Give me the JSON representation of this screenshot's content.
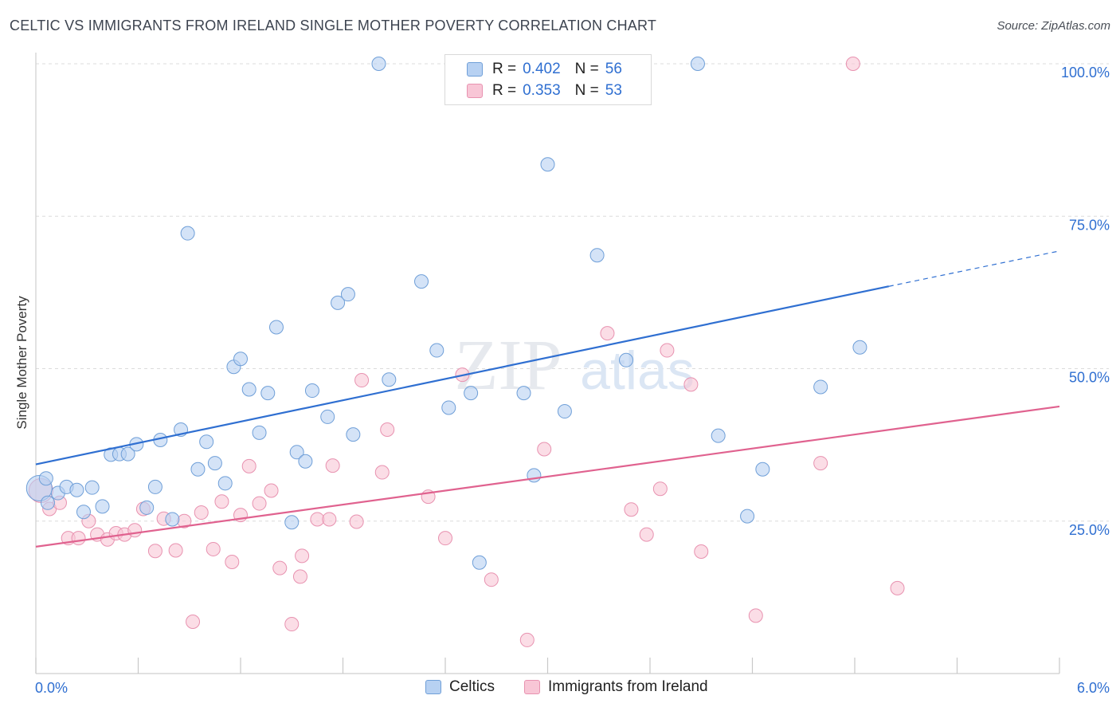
{
  "title": "CELTIC VS IMMIGRANTS FROM IRELAND SINGLE MOTHER POVERTY CORRELATION CHART",
  "source": "Source: ZipAtlas.com",
  "watermark": {
    "zip": "ZIP",
    "atlas": "atlas"
  },
  "legend": {
    "rows": [
      {
        "r_label": "R =",
        "r_value": "0.402",
        "n_label": "N =",
        "n_value": "56"
      },
      {
        "r_label": "R =",
        "r_value": "0.353",
        "n_label": "N =",
        "n_value": "53"
      }
    ]
  },
  "colors": {
    "celtics_fill": "#b7d1f2",
    "celtics_stroke": "#6f9fd8",
    "celtics_line": "#2f6fd1",
    "ireland_fill": "#f8c6d6",
    "ireland_stroke": "#e892b0",
    "ireland_line": "#e0628f",
    "axis_text": "#2f6fd1",
    "grid": "#dcdcdc"
  },
  "chart_data": {
    "type": "scatter",
    "title": "CELTIC VS IMMIGRANTS FROM IRELAND SINGLE MOTHER POVERTY CORRELATION CHART",
    "xlabel": "",
    "ylabel": "Single Mother Poverty",
    "xlim": [
      0,
      6
    ],
    "ylim": [
      0,
      100
    ],
    "x_tick_labels": [
      "0.0%",
      "6.0%"
    ],
    "y_ticks": [
      25,
      50,
      75,
      100
    ],
    "y_tick_labels": [
      "25.0%",
      "50.0%",
      "75.0%",
      "100.0%"
    ],
    "grid": true,
    "legend_position": "top-center",
    "series": [
      {
        "name": "Celtics",
        "r": 0.402,
        "n": 56,
        "trend": {
          "x0": 0,
          "y0": 34.3,
          "x1": 5.0,
          "y1": 63.5,
          "dashed_to_x": 6.0,
          "dashed_to_y": 69.3
        },
        "points": [
          [
            0.02,
            30.4
          ],
          [
            0.07,
            28.0
          ],
          [
            0.13,
            29.6
          ],
          [
            0.18,
            30.6
          ],
          [
            0.24,
            30.1
          ],
          [
            0.28,
            26.5
          ],
          [
            0.33,
            30.5
          ],
          [
            0.39,
            27.4
          ],
          [
            0.44,
            35.9
          ],
          [
            0.49,
            36.0
          ],
          [
            0.54,
            36.0
          ],
          [
            0.59,
            37.6
          ],
          [
            0.65,
            27.2
          ],
          [
            0.7,
            30.6
          ],
          [
            0.73,
            38.3
          ],
          [
            0.8,
            25.3
          ],
          [
            0.85,
            40.0
          ],
          [
            0.89,
            72.2
          ],
          [
            0.95,
            33.5
          ],
          [
            1.0,
            38.0
          ],
          [
            1.05,
            34.5
          ],
          [
            1.11,
            31.2
          ],
          [
            1.16,
            50.3
          ],
          [
            1.2,
            51.6
          ],
          [
            1.25,
            46.6
          ],
          [
            1.31,
            39.5
          ],
          [
            1.36,
            46.0
          ],
          [
            1.41,
            56.8
          ],
          [
            1.5,
            24.8
          ],
          [
            1.53,
            36.3
          ],
          [
            1.58,
            34.8
          ],
          [
            1.62,
            46.4
          ],
          [
            1.71,
            42.1
          ],
          [
            1.77,
            60.8
          ],
          [
            1.83,
            62.2
          ],
          [
            1.86,
            39.2
          ],
          [
            2.01,
            100.0
          ],
          [
            2.07,
            48.2
          ],
          [
            2.26,
            64.3
          ],
          [
            2.35,
            53.0
          ],
          [
            2.42,
            43.6
          ],
          [
            2.55,
            46.0
          ],
          [
            2.6,
            18.2
          ],
          [
            2.86,
            46.0
          ],
          [
            2.92,
            32.5
          ],
          [
            3.0,
            83.5
          ],
          [
            3.1,
            43.0
          ],
          [
            3.29,
            68.6
          ],
          [
            3.46,
            51.4
          ],
          [
            3.88,
            100.0
          ],
          [
            4.0,
            39.0
          ],
          [
            4.17,
            25.8
          ],
          [
            4.26,
            33.5
          ],
          [
            4.6,
            47.0
          ],
          [
            4.83,
            53.5
          ],
          [
            0.06,
            32.0
          ]
        ]
      },
      {
        "name": "Immigrants from Ireland",
        "r": 0.353,
        "n": 53,
        "trend": {
          "x0": 0,
          "y0": 20.8,
          "x1": 6.0,
          "y1": 43.8
        },
        "points": [
          [
            0.03,
            30.0
          ],
          [
            0.08,
            27.0
          ],
          [
            0.14,
            28.0
          ],
          [
            0.19,
            22.2
          ],
          [
            0.25,
            22.2
          ],
          [
            0.31,
            25.0
          ],
          [
            0.36,
            22.8
          ],
          [
            0.42,
            22.0
          ],
          [
            0.47,
            23.0
          ],
          [
            0.52,
            22.8
          ],
          [
            0.58,
            23.5
          ],
          [
            0.63,
            27.0
          ],
          [
            0.7,
            20.1
          ],
          [
            0.75,
            25.4
          ],
          [
            0.82,
            20.2
          ],
          [
            0.87,
            25.0
          ],
          [
            0.92,
            8.5
          ],
          [
            0.97,
            26.4
          ],
          [
            1.04,
            20.4
          ],
          [
            1.09,
            28.2
          ],
          [
            1.15,
            18.3
          ],
          [
            1.2,
            26.0
          ],
          [
            1.25,
            34.0
          ],
          [
            1.31,
            27.9
          ],
          [
            1.38,
            30.0
          ],
          [
            1.43,
            17.3
          ],
          [
            1.5,
            8.1
          ],
          [
            1.55,
            15.9
          ],
          [
            1.56,
            19.3
          ],
          [
            1.65,
            25.3
          ],
          [
            1.72,
            25.3
          ],
          [
            1.74,
            34.1
          ],
          [
            1.88,
            24.9
          ],
          [
            1.91,
            48.1
          ],
          [
            2.03,
            33.0
          ],
          [
            2.06,
            40.0
          ],
          [
            2.3,
            29.0
          ],
          [
            2.4,
            22.2
          ],
          [
            2.5,
            49.0
          ],
          [
            2.67,
            15.4
          ],
          [
            2.88,
            5.5
          ],
          [
            2.98,
            36.8
          ],
          [
            3.35,
            55.8
          ],
          [
            3.49,
            26.9
          ],
          [
            3.58,
            22.8
          ],
          [
            3.66,
            30.3
          ],
          [
            3.7,
            53.0
          ],
          [
            3.84,
            47.4
          ],
          [
            3.9,
            20.0
          ],
          [
            4.22,
            9.5
          ],
          [
            4.6,
            34.5
          ],
          [
            4.79,
            100.0
          ],
          [
            5.05,
            14.0
          ]
        ]
      }
    ]
  }
}
